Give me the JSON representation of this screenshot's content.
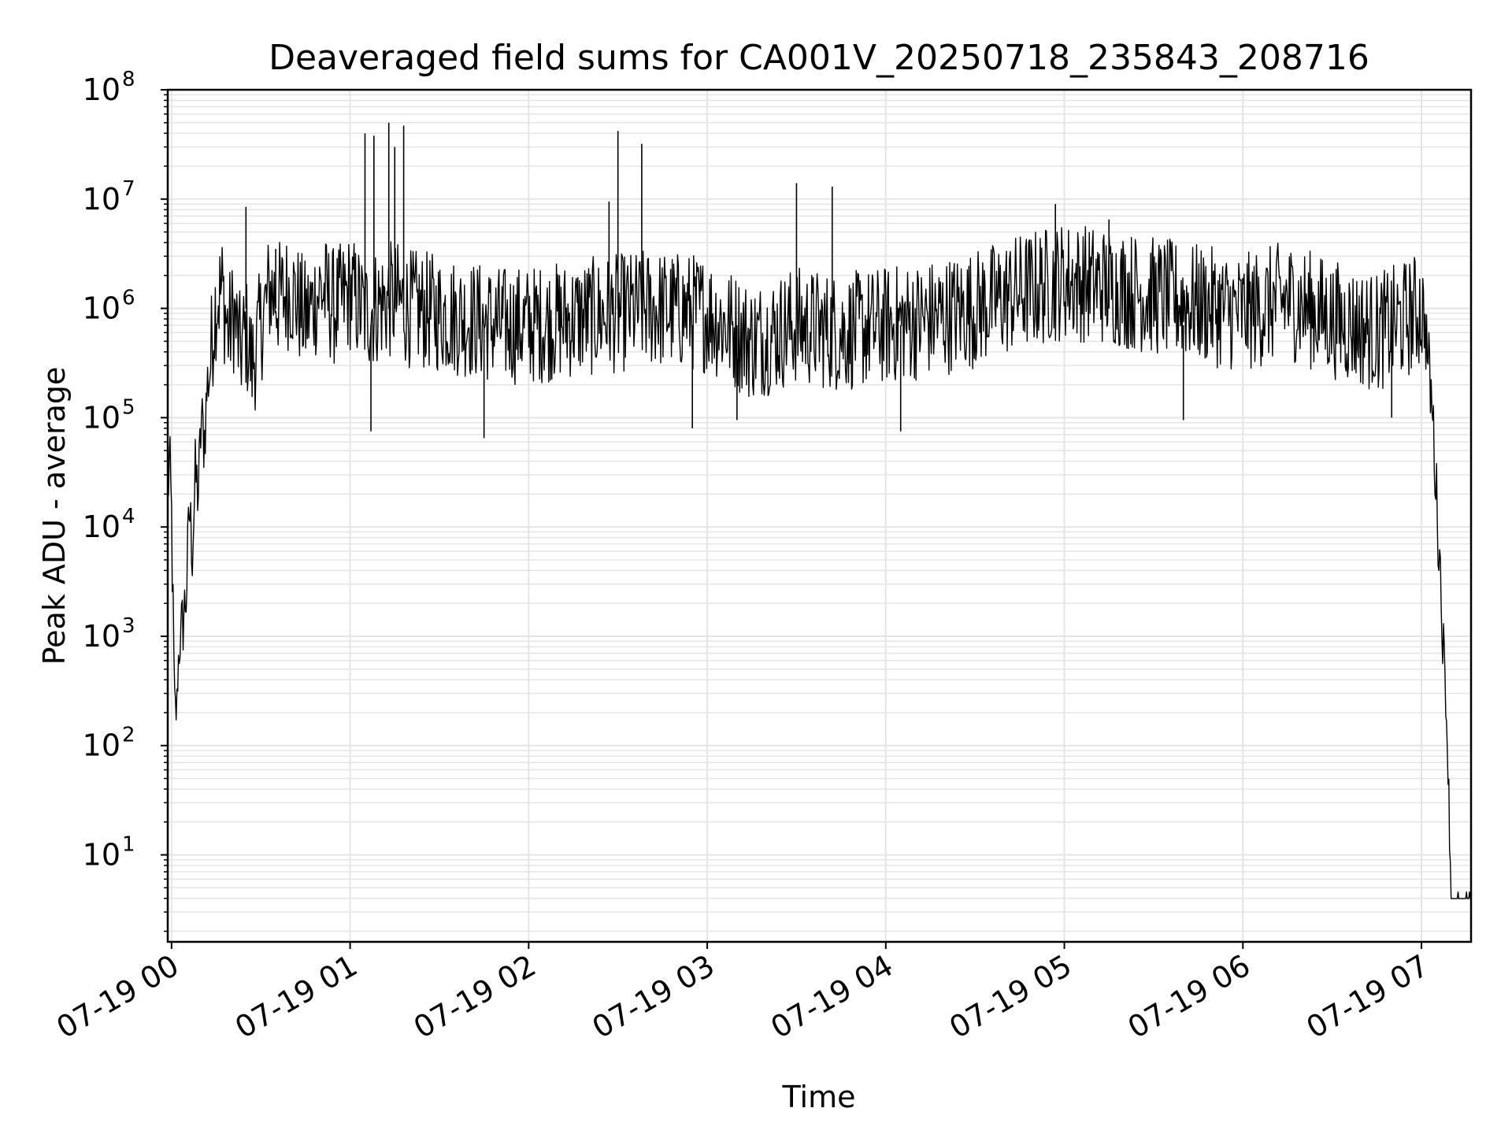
{
  "chart_data": {
    "type": "line",
    "title": "Deaveraged field sums for CA001V_20250718_235843_208716",
    "xlabel": "Time",
    "ylabel": "Peak ADU - average",
    "xlim": [
      "2025-07-18 23:58:43",
      "2025-07-19 07:16:40"
    ],
    "ylim": [
      1.6,
      100000000
    ],
    "yscale": "log",
    "grid": true,
    "legend": "none",
    "line_color": "#000000",
    "grid_color": "#e5e5e5",
    "x_ticks": [
      {
        "value": "2025-07-19 00:00",
        "label": "07-19 00"
      },
      {
        "value": "2025-07-19 01:00",
        "label": "07-19 01"
      },
      {
        "value": "2025-07-19 02:00",
        "label": "07-19 02"
      },
      {
        "value": "2025-07-19 03:00",
        "label": "07-19 03"
      },
      {
        "value": "2025-07-19 04:00",
        "label": "07-19 04"
      },
      {
        "value": "2025-07-19 05:00",
        "label": "07-19 05"
      },
      {
        "value": "2025-07-19 06:00",
        "label": "07-19 06"
      },
      {
        "value": "2025-07-19 07:00",
        "label": "07-19 07"
      }
    ],
    "y_ticks": [
      {
        "value": 10,
        "base": "10",
        "exp": "1"
      },
      {
        "value": 100,
        "base": "10",
        "exp": "2"
      },
      {
        "value": 1000,
        "base": "10",
        "exp": "3"
      },
      {
        "value": 10000,
        "base": "10",
        "exp": "4"
      },
      {
        "value": 100000,
        "base": "10",
        "exp": "5"
      },
      {
        "value": 1000000,
        "base": "10",
        "exp": "6"
      },
      {
        "value": 10000000,
        "base": "10",
        "exp": "7"
      },
      {
        "value": 100000000,
        "base": "10",
        "exp": "8"
      }
    ],
    "series": [
      {
        "x": [
          "2025-07-18 23:58:43",
          "2025-07-18 23:59:20",
          "2025-07-19 00:00:00",
          "2025-07-19 00:01:00",
          "2025-07-19 00:01:40",
          "2025-07-19 00:02:15",
          "2025-07-19 00:03:00",
          "2025-07-19 00:04:00",
          "2025-07-19 00:05:00",
          "2025-07-19 00:06:00",
          "2025-07-19 00:07:00",
          "2025-07-19 00:08:00",
          "2025-07-19 00:09:00",
          "2025-07-19 00:10:00",
          "2025-07-19 00:11:00",
          "2025-07-19 00:12:00",
          "2025-07-19 00:13:00",
          "2025-07-19 00:14:00",
          "2025-07-19 00:15:00",
          "2025-07-19 00:17:00",
          "2025-07-19 00:19:00",
          "2025-07-19 00:21:00",
          "2025-07-19 00:23:00",
          "2025-07-19 00:25:00",
          "2025-07-19 00:27:00",
          "2025-07-19 00:30:00",
          "2025-07-19 00:33:00",
          "2025-07-19 00:36:00",
          "2025-07-19 00:40:00",
          "2025-07-19 00:45:00",
          "2025-07-19 00:50:00",
          "2025-07-19 00:55:00",
          "2025-07-19 01:00:00",
          "2025-07-19 01:05:00",
          "2025-07-19 01:10:00",
          "2025-07-19 01:15:00",
          "2025-07-19 01:20:00",
          "2025-07-19 01:30:00",
          "2025-07-19 01:40:00",
          "2025-07-19 01:50:00",
          "2025-07-19 02:00:00",
          "2025-07-19 02:15:00",
          "2025-07-19 02:30:00",
          "2025-07-19 02:40:00",
          "2025-07-19 03:00:00",
          "2025-07-19 03:15:00",
          "2025-07-19 03:30:00",
          "2025-07-19 03:45:00",
          "2025-07-19 04:00:00",
          "2025-07-19 04:15:00",
          "2025-07-19 04:30:00",
          "2025-07-19 04:45:00",
          "2025-07-19 05:00:00",
          "2025-07-19 05:15:00",
          "2025-07-19 05:30:00",
          "2025-07-19 05:45:00",
          "2025-07-19 06:00:00",
          "2025-07-19 06:15:00",
          "2025-07-19 06:30:00",
          "2025-07-19 06:45:00",
          "2025-07-19 06:55:00",
          "2025-07-19 07:00:00",
          "2025-07-19 07:01:00",
          "2025-07-19 07:02:00",
          "2025-07-19 07:03:00",
          "2025-07-19 07:04:00",
          "2025-07-19 07:05:00",
          "2025-07-19 07:06:00",
          "2025-07-19 07:07:00",
          "2025-07-19 07:08:00",
          "2025-07-19 07:09:00",
          "2025-07-19 07:09:30",
          "2025-07-19 07:10:00",
          "2025-07-19 07:12:00",
          "2025-07-19 07:14:00",
          "2025-07-19 07:16:40"
        ],
        "y": [
          20000,
          40000,
          12000,
          250,
          190,
          600,
          900,
          1500,
          2500,
          15000,
          6000,
          30000,
          20000,
          100000,
          60000,
          200000,
          300000,
          700000,
          1200000,
          1500000,
          600000,
          900000,
          400000,
          600000,
          300000,
          700000,
          1500000,
          1200000,
          1500000,
          800000,
          1500000,
          1000000,
          1400000,
          900000,
          1100000,
          1200000,
          1000000,
          900000,
          800000,
          700000,
          700000,
          800000,
          900000,
          1000000,
          900000,
          500000,
          700000,
          600000,
          700000,
          800000,
          1000000,
          1400000,
          1800000,
          1600000,
          1300000,
          1100000,
          900000,
          1200000,
          800000,
          600000,
          800000,
          1000000,
          800000,
          400000,
          200000,
          80000,
          20000,
          6000,
          1500,
          400,
          60,
          15,
          4,
          4,
          4,
          4
        ],
        "spikes": [
          {
            "x": "2025-07-19 00:25:00",
            "y": 8500000
          },
          {
            "x": "2025-07-19 00:35:00",
            "y": 3500000
          },
          {
            "x": "2025-07-19 01:05:00",
            "y": 40000000
          },
          {
            "x": "2025-07-19 01:08:00",
            "y": 38000000
          },
          {
            "x": "2025-07-19 01:13:00",
            "y": 50000000
          },
          {
            "x": "2025-07-19 01:15:00",
            "y": 30000000
          },
          {
            "x": "2025-07-19 01:18:00",
            "y": 47000000
          },
          {
            "x": "2025-07-19 02:30:00",
            "y": 42000000
          },
          {
            "x": "2025-07-19 02:38:00",
            "y": 32000000
          },
          {
            "x": "2025-07-19 02:27:00",
            "y": 9500000
          },
          {
            "x": "2025-07-19 03:30:00",
            "y": 14000000
          },
          {
            "x": "2025-07-19 03:42:00",
            "y": 13000000
          },
          {
            "x": "2025-07-19 04:57:00",
            "y": 9000000
          },
          {
            "x": "2025-07-19 05:15:00",
            "y": 6500000
          }
        ],
        "dips": [
          {
            "x": "2025-07-19 01:07:00",
            "y": 75000
          },
          {
            "x": "2025-07-19 01:45:00",
            "y": 65000
          },
          {
            "x": "2025-07-19 02:55:00",
            "y": 80000
          },
          {
            "x": "2025-07-19 03:10:00",
            "y": 95000
          },
          {
            "x": "2025-07-19 04:05:00",
            "y": 75000
          },
          {
            "x": "2025-07-19 05:40:00",
            "y": 95000
          },
          {
            "x": "2025-07-19 06:50:00",
            "y": 100000
          }
        ]
      }
    ]
  }
}
